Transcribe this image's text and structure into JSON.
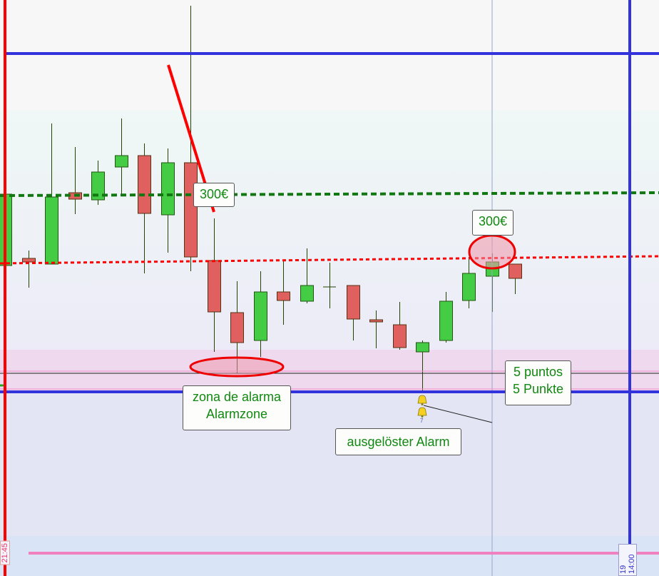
{
  "chart_data": {
    "type": "candlestick",
    "price_units": "relative",
    "candles": [
      {
        "o": 428,
        "c": 528,
        "h": 535,
        "l": 428,
        "dir": "up"
      },
      {
        "o": 438,
        "c": 433,
        "h": 449,
        "l": 397,
        "dir": "down"
      },
      {
        "o": 430,
        "c": 524,
        "h": 627,
        "l": 430,
        "dir": "up"
      },
      {
        "o": 530,
        "c": 521,
        "h": 594,
        "l": 500,
        "dir": "down"
      },
      {
        "o": 520,
        "c": 559,
        "h": 575,
        "l": 513,
        "dir": "up"
      },
      {
        "o": 566,
        "c": 582,
        "h": 634,
        "l": 525,
        "dir": "up"
      },
      {
        "o": 582,
        "c": 501,
        "h": 599,
        "l": 417,
        "dir": "down"
      },
      {
        "o": 499,
        "c": 572,
        "h": 592,
        "l": 446,
        "dir": "up"
      },
      {
        "o": 572,
        "c": 440,
        "h": 792,
        "l": 420,
        "dir": "down"
      },
      {
        "o": 435,
        "c": 363,
        "h": 494,
        "l": 307,
        "dir": "down"
      },
      {
        "o": 362,
        "c": 320,
        "h": 406,
        "l": 277,
        "dir": "down"
      },
      {
        "o": 323,
        "c": 391,
        "h": 420,
        "l": 300,
        "dir": "up"
      },
      {
        "o": 391,
        "c": 379,
        "h": 436,
        "l": 345,
        "dir": "down"
      },
      {
        "o": 378,
        "c": 400,
        "h": 452,
        "l": 375,
        "dir": "up"
      },
      {
        "o": 398,
        "c": 398,
        "h": 432,
        "l": 368,
        "dir": "flat"
      },
      {
        "o": 400,
        "c": 353,
        "h": 400,
        "l": 323,
        "dir": "down"
      },
      {
        "o": 352,
        "c": 349,
        "h": 365,
        "l": 312,
        "dir": "down"
      },
      {
        "o": 345,
        "c": 313,
        "h": 377,
        "l": 310,
        "dir": "down"
      },
      {
        "o": 307,
        "c": 320,
        "h": 323,
        "l": 250,
        "dir": "up"
      },
      {
        "o": 323,
        "c": 378,
        "h": 391,
        "l": 320,
        "dir": "up"
      },
      {
        "o": 379,
        "c": 417,
        "h": 440,
        "l": 368,
        "dir": "up"
      },
      {
        "o": 413,
        "c": 433,
        "h": 445,
        "l": 363,
        "dir": "up"
      },
      {
        "o": 430,
        "c": 410,
        "h": 430,
        "l": 388,
        "dir": "down"
      }
    ],
    "levels": {
      "green_dashed": 528,
      "red_dotted_left": 431,
      "red_dotted_right": 441,
      "blue_top": 725,
      "blue_bottom": 251,
      "alarm_zone": [
        255,
        280
      ]
    },
    "time_labels": [
      "21:45",
      "19 14:00"
    ],
    "colors": {
      "up": "#44cc44",
      "down": "#e06060",
      "wick": "#224400",
      "blue": "#3333dd",
      "red": "#ff0000",
      "green_dash": "#117711",
      "pink": "#f080c0"
    }
  },
  "annotations": {
    "price_label_1": "300€",
    "price_label_2": "300€",
    "alarm_zone_line1": "zona de alarma",
    "alarm_zone_line2": "Alarmzone",
    "triggered_alarm": "ausgelöster Alarm",
    "points_line1": "5 puntos",
    "points_line2": "5 Punkte",
    "alarm_count": "7"
  }
}
